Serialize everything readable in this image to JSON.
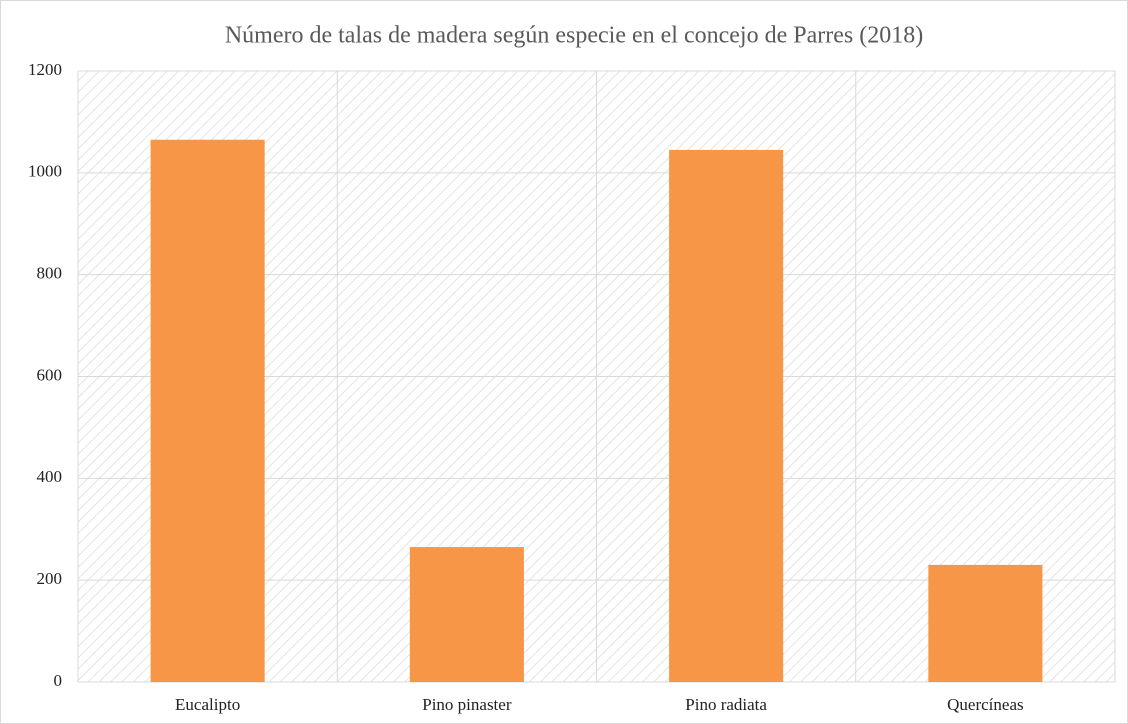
{
  "chart_data": {
    "type": "bar",
    "title": "Número de talas de madera según especie en el concejo de Parres (2018)",
    "categories": [
      "Eucalipto",
      "Pino pinaster",
      "Pino radiata",
      "Quercíneas"
    ],
    "values": [
      1065,
      265,
      1045,
      230
    ],
    "color": "#f79646",
    "ylim": [
      0,
      1200
    ],
    "yticks": [
      0,
      200,
      400,
      600,
      800,
      1000,
      1200
    ],
    "grid": true
  }
}
